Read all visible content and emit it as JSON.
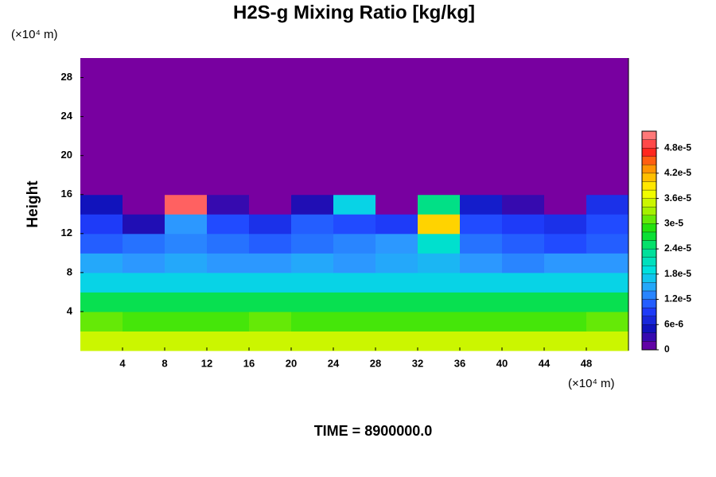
{
  "chart_data": {
    "type": "contour",
    "title": "H2S-g Mixing Ratio [kg/kg]",
    "y_label": "Height",
    "y_unit": "(×10⁴ m)",
    "x_unit": "(×10⁴ m)",
    "footer": "TIME = 8900000.0",
    "xlim": [
      0,
      52
    ],
    "ylim": [
      0,
      30
    ],
    "xticks": [
      4,
      8,
      12,
      16,
      20,
      24,
      28,
      32,
      36,
      40,
      44,
      48
    ],
    "yticks": [
      4,
      8,
      12,
      16,
      20,
      24,
      28
    ],
    "x_bins": [
      0,
      4,
      8,
      12,
      16,
      20,
      24,
      28,
      32,
      36,
      40,
      44,
      48,
      52
    ],
    "y_bins": [
      0,
      2,
      4,
      6,
      8,
      10,
      12,
      14,
      16,
      18,
      20,
      22,
      24,
      26,
      28,
      30
    ],
    "z": [
      [
        3.5e-05,
        3.5e-05,
        3.5e-05,
        3.5e-05,
        3.5e-05,
        3.5e-05,
        3.5e-05,
        3.5e-05,
        3.5e-05,
        3.5e-05,
        3.5e-05,
        3.5e-05,
        3.5e-05
      ],
      [
        3.1e-05,
        3e-05,
        3e-05,
        3e-05,
        3.1e-05,
        3e-05,
        3e-05,
        3e-05,
        3e-05,
        3e-05,
        3e-05,
        3e-05,
        3.1e-05
      ],
      [
        2.6e-05,
        2.6e-05,
        2.6e-05,
        2.6e-05,
        2.6e-05,
        2.6e-05,
        2.6e-05,
        2.6e-05,
        2.6e-05,
        2.6e-05,
        2.6e-05,
        2.6e-05,
        2.6e-05
      ],
      [
        1.8e-05,
        1.8e-05,
        1.8e-05,
        1.8e-05,
        1.8e-05,
        1.8e-05,
        1.8e-05,
        1.8e-05,
        1.8e-05,
        1.8e-05,
        1.8e-05,
        1.8e-05,
        1.8e-05
      ],
      [
        1.5e-05,
        1.4e-05,
        1.5e-05,
        1.4e-05,
        1.4e-05,
        1.5e-05,
        1.4e-05,
        1.5e-05,
        1.6e-05,
        1.4e-05,
        1.3e-05,
        1.4e-05,
        1.4e-05
      ],
      [
        1.1e-05,
        1.2e-05,
        1.3e-05,
        1.2e-05,
        1.1e-05,
        1.2e-05,
        1.3e-05,
        1.4e-05,
        2e-05,
        1.2e-05,
        1.1e-05,
        1e-05,
        1.1e-05
      ],
      [
        9e-06,
        4e-06,
        1.4e-05,
        1e-05,
        8e-06,
        1.1e-05,
        1e-05,
        9e-06,
        4e-05,
        1e-05,
        9e-06,
        8e-06,
        1e-05
      ],
      [
        5e-06,
        0,
        5e-05,
        3e-06,
        0,
        4e-06,
        1.8e-05,
        0,
        2.4e-05,
        6e-06,
        3e-06,
        0,
        8e-06
      ],
      [
        0,
        0,
        0,
        0,
        0,
        0,
        0,
        0,
        0,
        0,
        0,
        0,
        0
      ],
      [
        0,
        0,
        0,
        0,
        0,
        0,
        0,
        0,
        0,
        0,
        0,
        0,
        0
      ],
      [
        0,
        0,
        0,
        0,
        0,
        0,
        0,
        0,
        0,
        0,
        0,
        0,
        0
      ],
      [
        0,
        0,
        0,
        0,
        0,
        0,
        0,
        0,
        0,
        0,
        0,
        0,
        0
      ],
      [
        0,
        0,
        0,
        0,
        0,
        0,
        0,
        0,
        0,
        0,
        0,
        0,
        0
      ],
      [
        0,
        0,
        0,
        0,
        0,
        0,
        0,
        0,
        0,
        0,
        0,
        0,
        0
      ],
      [
        0,
        0,
        0,
        0,
        0,
        0,
        0,
        0,
        0,
        0,
        0,
        0,
        0
      ]
    ],
    "zlim": [
      0,
      5.2e-05
    ],
    "zticks": [
      0,
      {
        "value": 6e-06,
        "label": "6e-6"
      },
      {
        "value": 1.2e-05,
        "label": "1.2e-5"
      },
      {
        "value": 1.8e-05,
        "label": "1.8e-5"
      },
      {
        "value": 2.4e-05,
        "label": "2.4e-5"
      },
      {
        "value": 3e-05,
        "label": "3e-5"
      },
      {
        "value": 3.6e-05,
        "label": "3.6e-5"
      },
      {
        "value": 4.2e-05,
        "label": "4.2e-5"
      },
      {
        "value": 4.8e-05,
        "label": "4.8e-5"
      }
    ],
    "colorscale": [
      "#7800a0",
      "#1010b8",
      "#2040ff",
      "#2c9cff",
      "#00e0e0",
      "#00e090",
      "#10e010",
      "#a8f000",
      "#ffff00",
      "#ffa000",
      "#ff2020",
      "#ff9090"
    ]
  }
}
